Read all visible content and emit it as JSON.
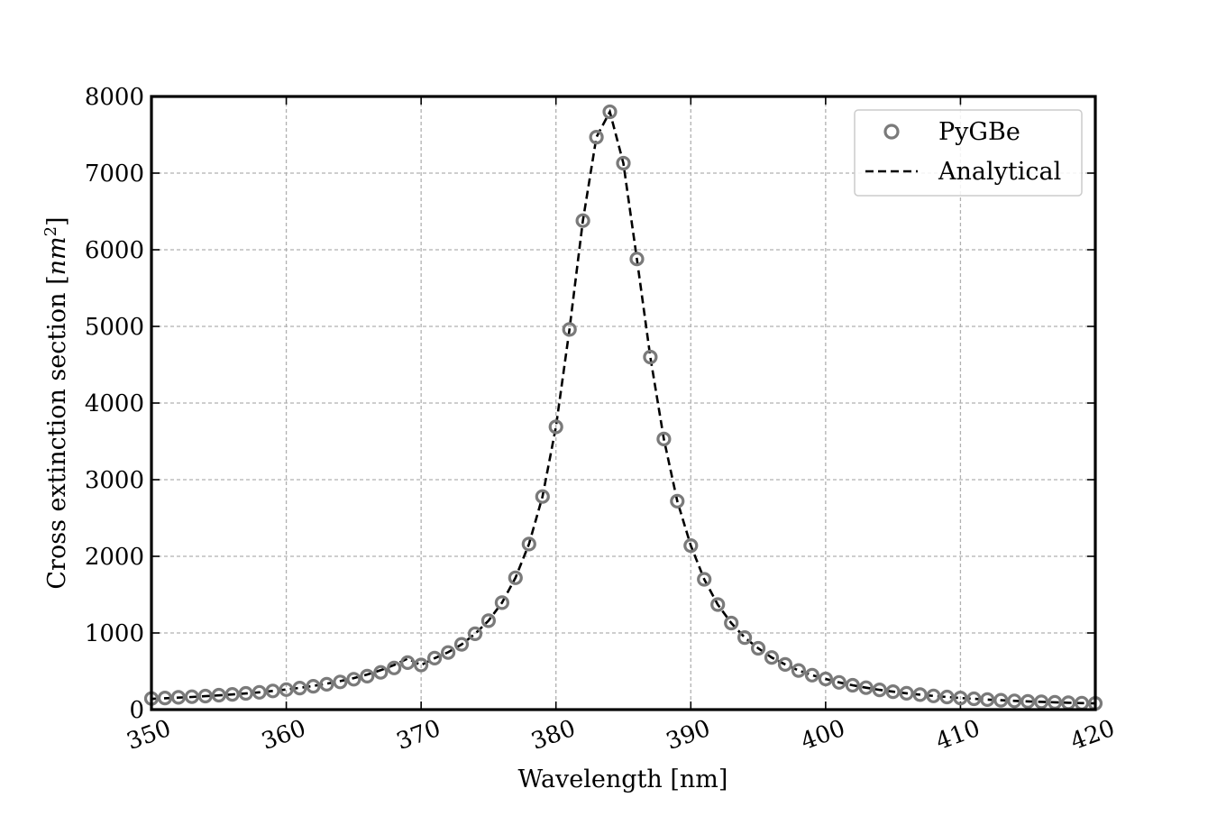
{
  "chart_data": {
    "type": "scatter",
    "title": "",
    "xlabel": "Wavelength [nm]",
    "ylabel": "Cross extinction section [",
    "ylabel_unit": "nm",
    "ylabel_exp": "2",
    "ylabel_close": "]",
    "xlim": [
      350,
      420
    ],
    "ylim": [
      0,
      8000
    ],
    "grid": true,
    "x_ticks": [
      350,
      360,
      370,
      380,
      390,
      400,
      410,
      420
    ],
    "y_ticks": [
      0,
      1000,
      2000,
      3000,
      4000,
      5000,
      6000,
      7000,
      8000
    ],
    "x_tick_labels": [
      "350",
      "360",
      "370",
      "380",
      "390",
      "400",
      "410",
      "420"
    ],
    "y_tick_labels": [
      "0",
      "1000",
      "2000",
      "3000",
      "4000",
      "5000",
      "6000",
      "7000",
      "8000"
    ],
    "legend_position": "top-right",
    "series": [
      {
        "name": "PyGBe",
        "style": "open-circle",
        "color": "#7a7a7a",
        "x": [
          350,
          351,
          352,
          353,
          354,
          355,
          356,
          357,
          358,
          359,
          360,
          361,
          362,
          363,
          364,
          365,
          366,
          367,
          368,
          369,
          370,
          371,
          372,
          373,
          374,
          375,
          376,
          377,
          378,
          379,
          380,
          381,
          382,
          383,
          384,
          385,
          386,
          387,
          388,
          389,
          390,
          391,
          392,
          393,
          394,
          395,
          396,
          397,
          398,
          399,
          400,
          401,
          402,
          403,
          404,
          405,
          406,
          407,
          408,
          409,
          410,
          411,
          412,
          413,
          414,
          415,
          416,
          417,
          418,
          419,
          420
        ],
        "y": [
          145,
          152,
          160,
          168,
          177,
          188,
          199,
          212,
          226,
          243,
          261,
          281,
          305,
          331,
          361,
          396,
          437,
          486,
          543,
          613,
          582,
          672,
          745,
          852,
          990,
          1160,
          1395,
          1720,
          2160,
          2780,
          3690,
          4960,
          6380,
          7470,
          7800,
          7130,
          5880,
          4600,
          3530,
          2720,
          2140,
          1700,
          1370,
          1130,
          940,
          800,
          680,
          590,
          510,
          450,
          400,
          355,
          318,
          286,
          258,
          234,
          213,
          195,
          179,
          165,
          152,
          141,
          131,
          122,
          114,
          107,
          101,
          95,
          90,
          85,
          81
        ]
      },
      {
        "name": "Analytical",
        "style": "dashed-line",
        "color": "#000000",
        "x": [
          350,
          351,
          352,
          353,
          354,
          355,
          356,
          357,
          358,
          359,
          360,
          361,
          362,
          363,
          364,
          365,
          366,
          367,
          368,
          369,
          370,
          371,
          372,
          373,
          374,
          375,
          376,
          377,
          378,
          379,
          380,
          381,
          382,
          383,
          384,
          385,
          386,
          387,
          388,
          389,
          390,
          391,
          392,
          393,
          394,
          395,
          396,
          397,
          398,
          399,
          400,
          401,
          402,
          403,
          404,
          405,
          406,
          407,
          408,
          409,
          410,
          411,
          412,
          413,
          414,
          415,
          416,
          417,
          418,
          419,
          420
        ],
        "y": [
          140,
          148,
          156,
          165,
          175,
          186,
          198,
          211,
          226,
          243,
          262,
          284,
          309,
          338,
          372,
          411,
          458,
          514,
          582,
          666,
          580,
          671,
          748,
          850,
          990,
          1160,
          1395,
          1720,
          2160,
          2780,
          3690,
          4960,
          6380,
          7470,
          7800,
          7130,
          5880,
          4600,
          3530,
          2720,
          2140,
          1700,
          1370,
          1130,
          940,
          800,
          680,
          590,
          510,
          450,
          400,
          355,
          318,
          286,
          258,
          234,
          213,
          195,
          179,
          165,
          152,
          141,
          131,
          122,
          114,
          107,
          101,
          95,
          90,
          85,
          81
        ]
      }
    ]
  }
}
